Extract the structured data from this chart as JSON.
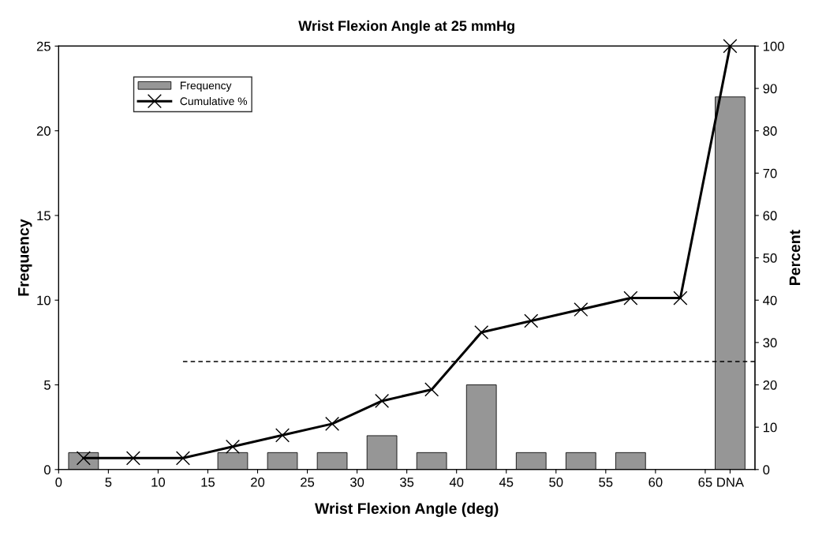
{
  "chart_data": {
    "type": "bar",
    "title": "Wrist Flexion Angle at 25 mmHg",
    "xlabel": "Wrist Flexion Angle (deg)",
    "ylabel": "Frequency",
    "y2label": "Percent",
    "xlim": [
      0,
      70
    ],
    "xticks": [
      0,
      5,
      10,
      15,
      20,
      25,
      30,
      35,
      40,
      45,
      50,
      55,
      60,
      65,
      {
        "value": 67.5,
        "label": "DNA"
      }
    ],
    "ylim": [
      0,
      25
    ],
    "yticks": [
      0,
      5,
      10,
      15,
      20,
      25
    ],
    "y2lim": [
      0,
      100
    ],
    "y2ticks": [
      0,
      10,
      20,
      30,
      40,
      50,
      60,
      70,
      80,
      90,
      100
    ],
    "grid": false,
    "legend": "top left",
    "series": [
      {
        "name": "Frequency",
        "color": "#969696",
        "x": [
          2.5,
          7.5,
          12.5,
          17.5,
          22.5,
          27.5,
          32.5,
          37.5,
          42.5,
          47.5,
          52.5,
          57.5,
          62.5,
          67.5
        ],
        "values": [
          1,
          0,
          0,
          1,
          1,
          1,
          2,
          1,
          5,
          1,
          1,
          1,
          0,
          22
        ]
      },
      {
        "name": "Cumulative %",
        "type": "line",
        "axis": "y2",
        "color": "#000000",
        "marker": "cross",
        "line_style": "solid",
        "x": [
          2.5,
          7.5,
          12.5,
          17.5,
          22.5,
          27.5,
          32.5,
          37.5,
          42.5,
          47.5,
          52.5,
          57.5,
          62.5,
          67.5
        ],
        "values": [
          2.7,
          2.7,
          2.7,
          5.4,
          8.1,
          10.8,
          16.2,
          18.9,
          32.4,
          35.1,
          37.8,
          40.5,
          40.5,
          100
        ]
      },
      {
        "type": "line",
        "axis": "y2",
        "color": "#000000",
        "marker": "none",
        "line_style": "dashed",
        "x": [
          12.5,
          70
        ],
        "values": [
          25.5,
          25.5
        ]
      }
    ]
  }
}
